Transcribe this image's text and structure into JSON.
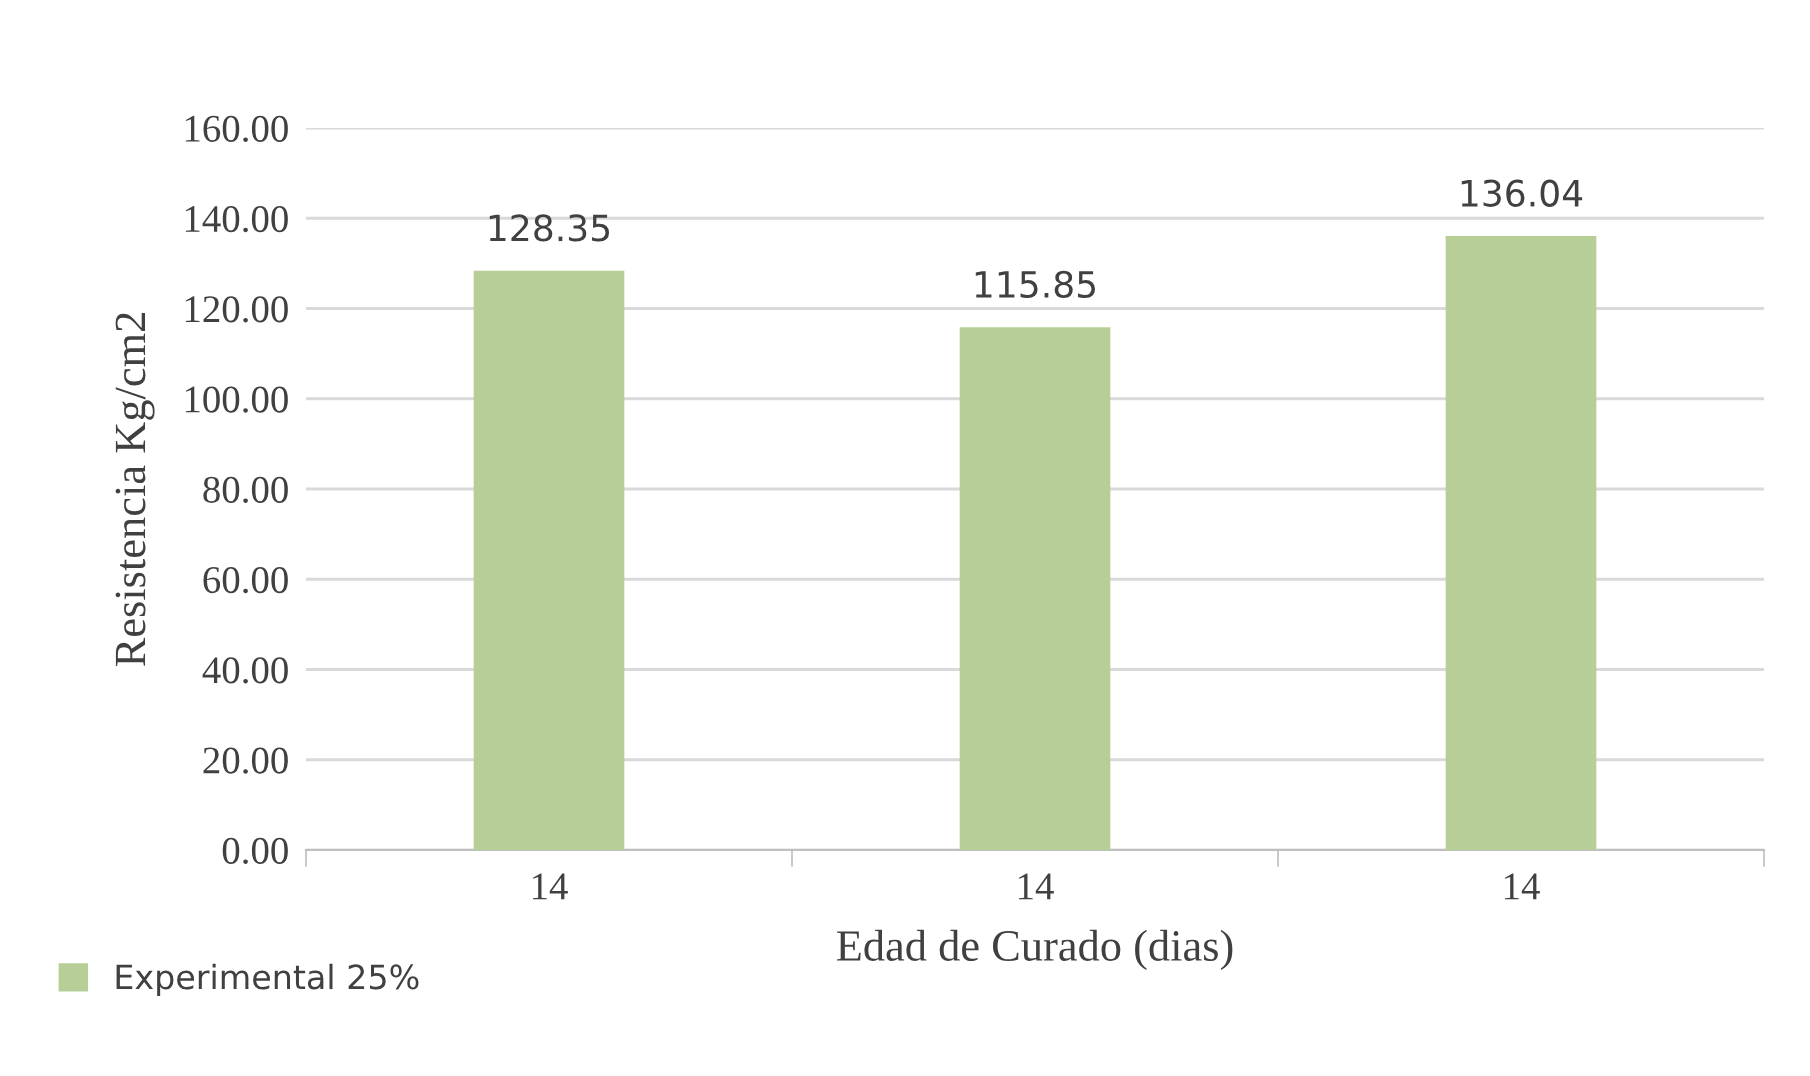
{
  "chart_data": {
    "type": "bar",
    "xlabel": "Edad de Curado (dias)",
    "ylabel": "Resistencia Kg/cm2",
    "categories": [
      "14",
      "14",
      "14"
    ],
    "series": [
      {
        "name": "Experimental 25%",
        "color": "#b7cf96",
        "values": [
          128.35,
          115.85,
          136.04
        ]
      }
    ],
    "ylim": [
      0,
      160
    ],
    "yticks": [
      {
        "value": 0,
        "label": "0.00"
      },
      {
        "value": 20,
        "label": "20.00"
      },
      {
        "value": 40,
        "label": "40.00"
      },
      {
        "value": 60,
        "label": "60.00"
      },
      {
        "value": 80,
        "label": "80.00"
      },
      {
        "value": 100,
        "label": "100.00"
      },
      {
        "value": 120,
        "label": "120.00"
      },
      {
        "value": 140,
        "label": "140.00"
      },
      {
        "value": 160,
        "label": "160.00"
      }
    ],
    "grid": "y",
    "legend": "bottom left",
    "data_labels": true
  }
}
